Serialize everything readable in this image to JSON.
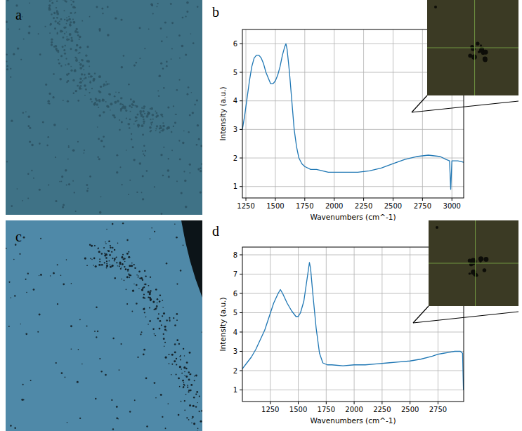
{
  "figure": {
    "panel_labels": [
      "a",
      "b",
      "c",
      "d"
    ]
  },
  "chart_data": [
    {
      "type": "line",
      "x_label": "Wavenumbers (cm^-1)",
      "y_label": "Intensity (a.u.)",
      "grid": true,
      "xlim": [
        1220,
        3100
      ],
      "xticks": [
        1250,
        1500,
        1750,
        2000,
        2250,
        2500,
        2750,
        3000
      ],
      "ylim": [
        0.6,
        6.5
      ],
      "yticks": [
        1,
        2,
        3,
        4,
        5,
        6
      ],
      "x": [
        1220,
        1240,
        1260,
        1280,
        1300,
        1320,
        1340,
        1360,
        1380,
        1400,
        1420,
        1440,
        1460,
        1480,
        1500,
        1520,
        1540,
        1560,
        1580,
        1590,
        1600,
        1620,
        1640,
        1660,
        1680,
        1700,
        1725,
        1750,
        1800,
        1850,
        1900,
        1950,
        2000,
        2100,
        2200,
        2300,
        2400,
        2500,
        2600,
        2700,
        2800,
        2900,
        2950,
        2980,
        2990,
        3000,
        3050,
        3100
      ],
      "series": [
        {
          "color": "#1f77b4",
          "values": [
            3.0,
            3.5,
            4.1,
            4.7,
            5.2,
            5.5,
            5.6,
            5.6,
            5.5,
            5.3,
            5.0,
            4.8,
            4.6,
            4.6,
            4.7,
            4.9,
            5.2,
            5.6,
            5.9,
            6.0,
            5.8,
            5.0,
            4.0,
            3.0,
            2.4,
            2.0,
            1.8,
            1.7,
            1.6,
            1.6,
            1.55,
            1.5,
            1.5,
            1.5,
            1.5,
            1.55,
            1.65,
            1.8,
            1.95,
            2.05,
            2.1,
            2.05,
            1.95,
            1.9,
            0.9,
            1.9,
            1.9,
            1.85
          ]
        }
      ]
    },
    {
      "type": "line",
      "x_label": "Wavenumbers (cm^-1)",
      "y_label": "Intensity (a.u.)",
      "grid": true,
      "xlim": [
        1000,
        2980
      ],
      "xticks": [
        1250,
        1500,
        1750,
        2000,
        2250,
        2500,
        2750
      ],
      "ylim": [
        0.4,
        8.4
      ],
      "yticks": [
        1,
        2,
        3,
        4,
        5,
        6,
        7,
        8
      ],
      "x": [
        1000,
        1040,
        1080,
        1120,
        1160,
        1200,
        1240,
        1280,
        1320,
        1340,
        1360,
        1400,
        1440,
        1480,
        1500,
        1520,
        1550,
        1580,
        1600,
        1610,
        1630,
        1660,
        1690,
        1720,
        1760,
        1800,
        1900,
        2000,
        2100,
        2200,
        2300,
        2400,
        2500,
        2600,
        2700,
        2750,
        2800,
        2850,
        2900,
        2950,
        2970,
        2978
      ],
      "series": [
        {
          "color": "#1f77b4",
          "values": [
            2.1,
            2.4,
            2.7,
            3.1,
            3.6,
            4.1,
            4.8,
            5.5,
            6.0,
            6.2,
            6.0,
            5.5,
            5.1,
            4.8,
            4.8,
            5.0,
            5.6,
            6.8,
            7.6,
            7.3,
            6.0,
            4.2,
            2.9,
            2.4,
            2.3,
            2.3,
            2.25,
            2.3,
            2.3,
            2.35,
            2.4,
            2.45,
            2.5,
            2.6,
            2.75,
            2.85,
            2.9,
            2.95,
            3.0,
            3.0,
            2.9,
            1.0
          ]
        }
      ]
    }
  ]
}
